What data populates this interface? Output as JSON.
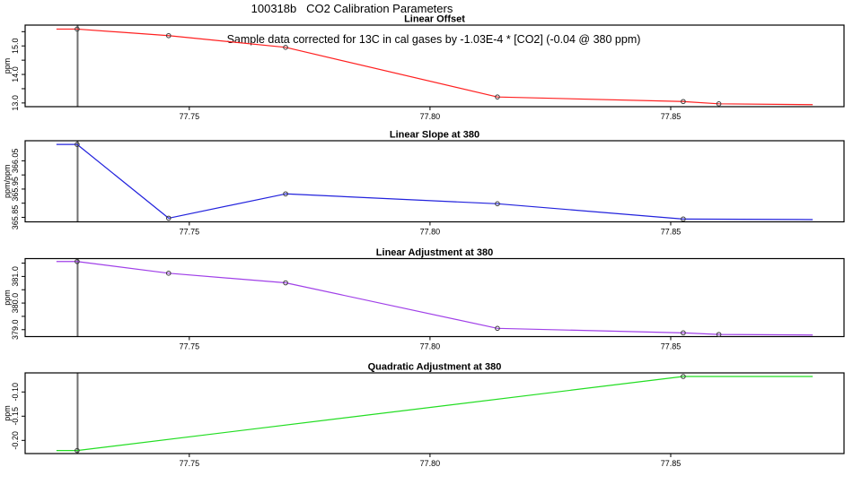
{
  "title": "100318b   CO2 Calibration Parameters",
  "annotation": "Sample data corrected for 13C in cal gases by -1.03E-4 * [CO2] (-0.04 @ 380 ppm)",
  "colors": {
    "linear_offset": "#ff2020",
    "linear_slope": "#2222dd",
    "linear_adjustment": "#a040e8",
    "quadratic_adjustment": "#22dd22",
    "event_line": "#707070",
    "marker_stroke": "#3a3a3a",
    "axis": "#000000"
  },
  "chart_data": [
    {
      "type": "line",
      "slug": "linear-offset",
      "title": "Linear Offset",
      "ylabel": "ppm",
      "color_key": "linear_offset",
      "xlim": [
        77.7159,
        77.886
      ],
      "ylim": [
        12.87,
        15.73
      ],
      "xticks": [
        77.75,
        77.8,
        77.85
      ],
      "xtick_labels": [
        "77.75",
        "77.80",
        "77.85"
      ],
      "yticks": [
        13.0,
        14.0,
        15.0
      ],
      "ytick_labels": [
        "13.0",
        "14.0",
        "15.0"
      ],
      "minor_yticks": [
        13.5,
        14.5,
        15.5
      ],
      "event_line_x": 77.7268,
      "x": [
        77.7267,
        77.7457,
        77.77,
        77.814,
        77.8526,
        77.86
      ],
      "y": [
        15.59,
        15.36,
        14.95,
        13.21,
        13.05,
        12.97
      ],
      "line_start": {
        "x": 77.7224,
        "y": 15.59
      },
      "line_end": {
        "x": 77.8795,
        "y": 12.94
      }
    },
    {
      "type": "line",
      "slug": "linear-slope",
      "title": "Linear Slope at 380",
      "ylabel": "ppm/ppm",
      "color_key": "linear_slope",
      "xlim": [
        77.7159,
        77.886
      ],
      "ylim": [
        365.834,
        366.121
      ],
      "xticks": [
        77.75,
        77.8,
        77.85
      ],
      "xtick_labels": [
        "77.75",
        "77.80",
        "77.85"
      ],
      "yticks": [
        365.85,
        365.95,
        366.05
      ],
      "ytick_labels": [
        "365.85",
        "365.95",
        "366.05"
      ],
      "minor_yticks": [
        365.9,
        366.0
      ],
      "event_line_x": 77.7268,
      "x": [
        77.7267,
        77.7457,
        77.77,
        77.814,
        77.8526
      ],
      "y": [
        366.108,
        365.847,
        365.933,
        365.898,
        365.844
      ],
      "line_start": {
        "x": 77.7224,
        "y": 366.108
      },
      "line_end": {
        "x": 77.8795,
        "y": 365.842
      }
    },
    {
      "type": "line",
      "slug": "linear-adjustment",
      "title": "Linear Adjustment at 380",
      "ylabel": "ppm",
      "color_key": "linear_adjustment",
      "xlim": [
        77.7159,
        77.886
      ],
      "ylim": [
        378.74,
        381.67
      ],
      "xticks": [
        77.75,
        77.8,
        77.85
      ],
      "xtick_labels": [
        "77.75",
        "77.80",
        "77.85"
      ],
      "yticks": [
        379.0,
        380.0,
        381.0
      ],
      "ytick_labels": [
        "379.0",
        "380.0",
        "381.0"
      ],
      "minor_yticks": [
        379.5,
        380.5,
        381.5
      ],
      "event_line_x": 77.7268,
      "x": [
        77.7267,
        77.7457,
        77.77,
        77.814,
        77.8526,
        77.86
      ],
      "y": [
        381.56,
        381.12,
        380.76,
        379.05,
        378.88,
        378.82
      ],
      "line_start": {
        "x": 77.7224,
        "y": 381.56
      },
      "line_end": {
        "x": 77.8795,
        "y": 378.8
      }
    },
    {
      "type": "line",
      "slug": "quadratic-adjustment",
      "title": "Quadratic Adjustment at 380",
      "ylabel": "ppm",
      "color_key": "quadratic_adjustment",
      "xlim": [
        77.7159,
        77.886
      ],
      "ylim": [
        -0.2272,
        -0.0606
      ],
      "xticks": [
        77.75,
        77.8,
        77.85
      ],
      "xtick_labels": [
        "77.75",
        "77.80",
        "77.85"
      ],
      "yticks": [
        -0.2,
        -0.15,
        -0.1
      ],
      "ytick_labels": [
        "-0.20",
        "-0.15",
        "-0.10"
      ],
      "minor_yticks": [],
      "event_line_x": 77.7268,
      "x": [
        77.7267,
        77.8526
      ],
      "y": [
        -0.221,
        -0.068
      ],
      "line_start": {
        "x": 77.7224,
        "y": -0.221
      },
      "line_end": {
        "x": 77.8795,
        "y": -0.068
      }
    }
  ]
}
